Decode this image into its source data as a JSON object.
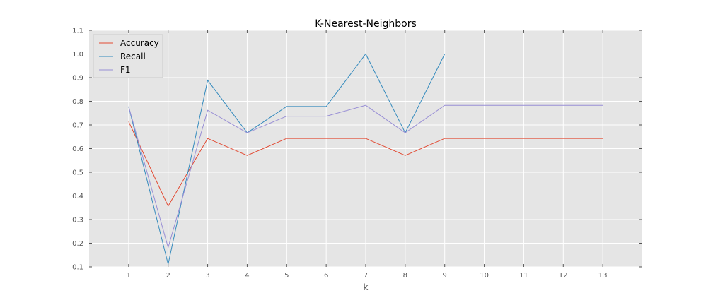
{
  "chart_data": {
    "type": "line",
    "title": "K-Nearest-Neighbors",
    "xlabel": "k",
    "ylabel": "",
    "x": [
      1,
      2,
      3,
      4,
      5,
      6,
      7,
      8,
      9,
      10,
      11,
      12,
      13
    ],
    "xlim": [
      0,
      14
    ],
    "ylim": [
      0.1,
      1.1
    ],
    "xticks": [
      "1",
      "2",
      "3",
      "4",
      "5",
      "6",
      "7",
      "8",
      "9",
      "10",
      "11",
      "12",
      "13"
    ],
    "yticks": [
      "0.1",
      "0.2",
      "0.3",
      "0.4",
      "0.5",
      "0.6",
      "0.7",
      "0.8",
      "0.9",
      "1.0",
      "1.1"
    ],
    "grid": true,
    "legend_position": "top-left",
    "series": [
      {
        "name": "Accuracy",
        "color": "#E24A33",
        "values": [
          0.714,
          0.357,
          0.643,
          0.571,
          0.643,
          0.643,
          0.643,
          0.571,
          0.643,
          0.643,
          0.643,
          0.643,
          0.643
        ]
      },
      {
        "name": "Recall",
        "color": "#348ABD",
        "values": [
          0.778,
          0.111,
          0.889,
          0.667,
          0.778,
          0.778,
          1.0,
          0.667,
          1.0,
          1.0,
          1.0,
          1.0,
          1.0
        ]
      },
      {
        "name": "F1",
        "color": "#988ED5",
        "values": [
          0.778,
          0.182,
          0.762,
          0.667,
          0.737,
          0.737,
          0.783,
          0.667,
          0.783,
          0.783,
          0.783,
          0.783,
          0.783
        ]
      }
    ]
  }
}
